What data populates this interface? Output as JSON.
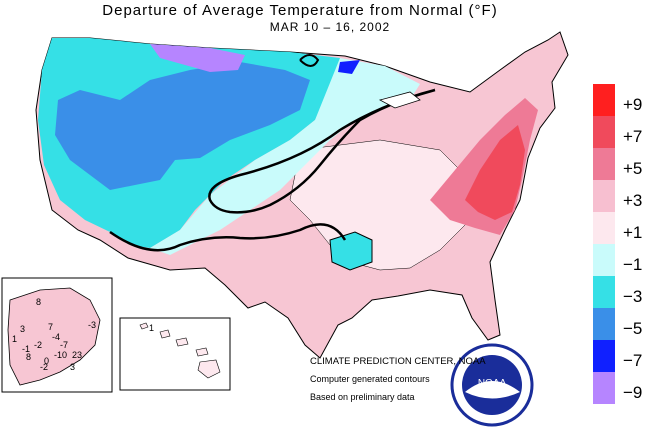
{
  "title": "Departure of Average Temperature from Normal (°F)",
  "subtitle": "MAR 10 – 16, 2002",
  "legend": {
    "items": [
      {
        "label": "+9",
        "color": "#ff1f1f"
      },
      {
        "label": "+7",
        "color": "#f04a5c"
      },
      {
        "label": "+5",
        "color": "#ee7a96"
      },
      {
        "label": "+3",
        "color": "#f7bfd0"
      },
      {
        "label": "+1",
        "color": "#fde8ee"
      },
      {
        "label": "−1",
        "color": "#c9fbfb"
      },
      {
        "label": "−3",
        "color": "#35e0e6"
      },
      {
        "label": "−5",
        "color": "#3a8fe8"
      },
      {
        "label": "−7",
        "color": "#1020ff"
      },
      {
        "label": "−9",
        "color": "#b685ff"
      }
    ]
  },
  "credits": {
    "center": "CLIMATE PREDICTION CENTER, NOAA",
    "line2": "Computer generated contours",
    "line3": "Based on preliminary data"
  },
  "logo": {
    "text": "NOAA"
  },
  "alaska_labels": [
    "8",
    "-3",
    "3",
    "7",
    "-4",
    "1",
    "-2",
    "-1",
    "-7",
    "-10",
    "8",
    "0",
    "-2",
    "23",
    "3"
  ],
  "hawaii_labels": [
    "1"
  ]
}
